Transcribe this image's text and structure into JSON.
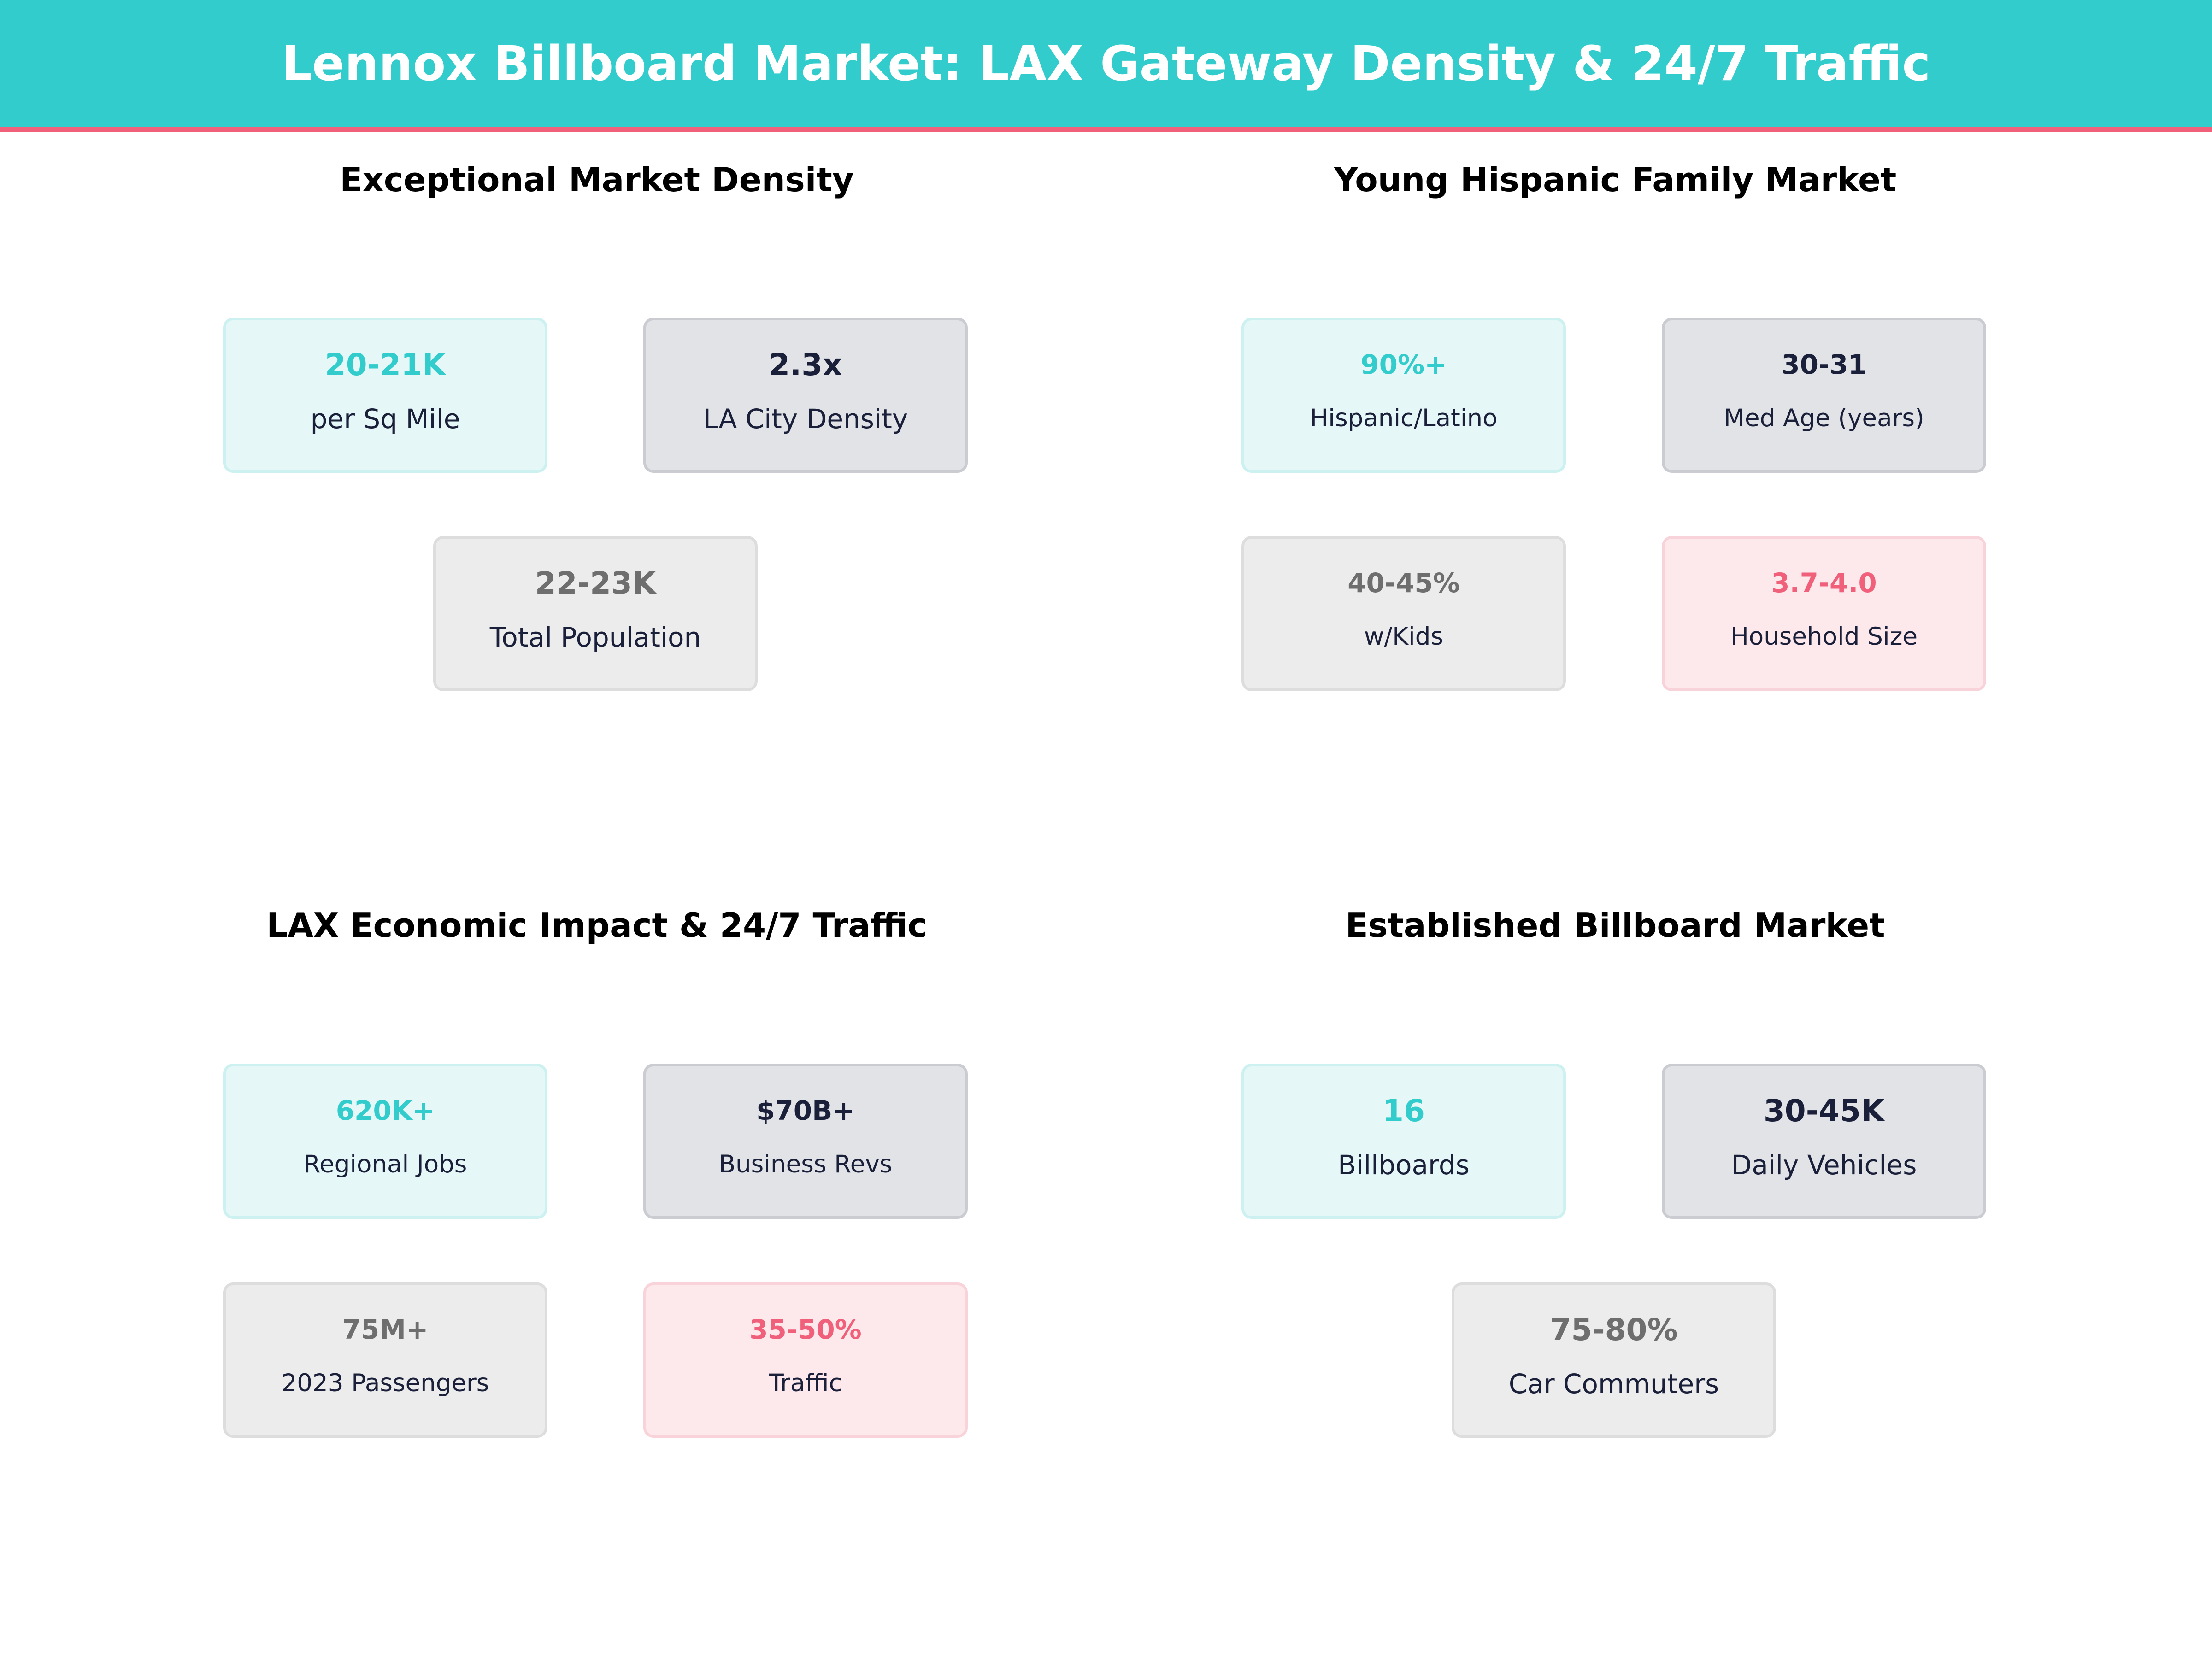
{
  "title": "Lennox Billboard Market: LAX Gateway Density & 24/7 Traffic",
  "colors": {
    "teal": "#33CCCC",
    "navy": "#1A1F3A",
    "gray": "#6E6E6E",
    "pink": "#F0607A"
  },
  "panels": [
    {
      "title": "Exceptional Market Density",
      "cards": [
        {
          "value": "20-21K",
          "label": "per Sq Mile",
          "style": "teal"
        },
        {
          "value": "2.3x",
          "label": "LA City Density",
          "style": "navy"
        },
        {
          "value": "22-23K",
          "label": "Total Population",
          "style": "gray"
        }
      ]
    },
    {
      "title": "Young Hispanic Family Market",
      "cards": [
        {
          "value": "90%+",
          "label": "Hispanic/Latino",
          "style": "teal"
        },
        {
          "value": "30-31",
          "label": "Med Age (years)",
          "style": "navy"
        },
        {
          "value": "40-45%",
          "label": "w/Kids",
          "style": "gray"
        },
        {
          "value": "3.7-4.0",
          "label": "Household Size",
          "style": "pink"
        }
      ]
    },
    {
      "title": "LAX Economic Impact & 24/7 Traffic",
      "cards": [
        {
          "value": "620K+",
          "label": "Regional Jobs",
          "style": "teal"
        },
        {
          "value": "$70B+",
          "label": "Business Revs",
          "style": "navy"
        },
        {
          "value": "75M+",
          "label": "2023 Passengers",
          "style": "gray"
        },
        {
          "value": "35-50%",
          "label": "Traffic",
          "style": "pink"
        }
      ]
    },
    {
      "title": "Established Billboard Market",
      "cards": [
        {
          "value": "16",
          "label": "Billboards",
          "style": "teal"
        },
        {
          "value": "30-45K",
          "label": "Daily Vehicles",
          "style": "navy"
        },
        {
          "value": "75-80%",
          "label": "Car Commuters",
          "style": "gray"
        }
      ]
    }
  ]
}
